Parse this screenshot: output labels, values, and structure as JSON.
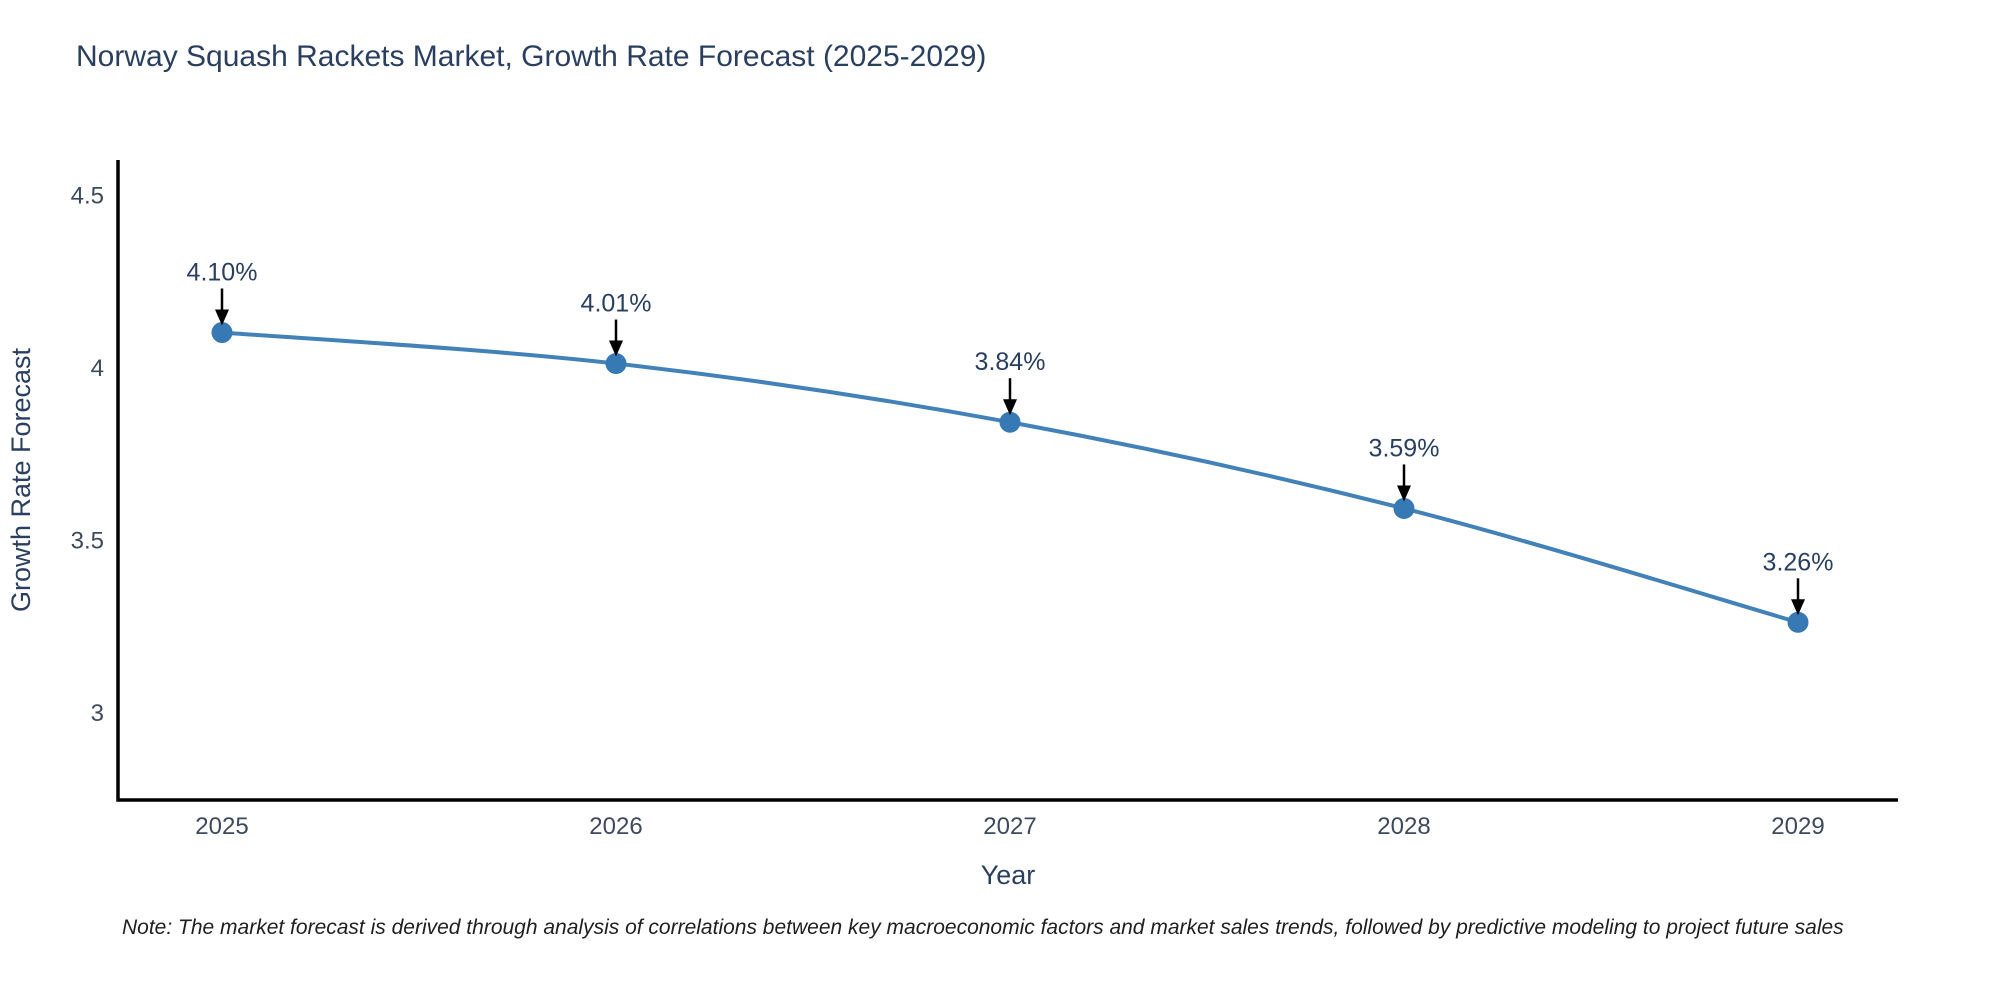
{
  "title": "Norway Squash Rackets Market, Growth Rate Forecast (2025-2029)",
  "note": "Note: The market forecast is derived through analysis of correlations between key macroeconomic factors and market sales trends, followed by predictive modeling to project future sales",
  "chart_data": {
    "type": "line",
    "title": "Norway Squash Rackets Market, Growth Rate Forecast (2025-2029)",
    "xlabel": "Year",
    "ylabel": "Growth Rate Forecast",
    "categories": [
      "2025",
      "2026",
      "2027",
      "2028",
      "2029"
    ],
    "values": [
      4.1,
      4.01,
      3.84,
      3.59,
      3.26
    ],
    "point_labels": [
      "4.10%",
      "4.01%",
      "3.84%",
      "3.59%",
      "3.26%"
    ],
    "yticks": [
      4.5,
      4,
      3.5,
      3
    ],
    "ylim": [
      2.74,
      4.6
    ],
    "grid": false,
    "legend": "none",
    "line_style": "smooth",
    "annotation_style": "value label with black down-arrow to each point",
    "colors": {
      "line": "#4282b8",
      "marker": "#3779b5",
      "axis": "#000000",
      "arrow": "#000000",
      "title_text": "#2a3f5f",
      "tick_text": "#3d4a5c",
      "note_text": "#1f1f1f"
    }
  }
}
